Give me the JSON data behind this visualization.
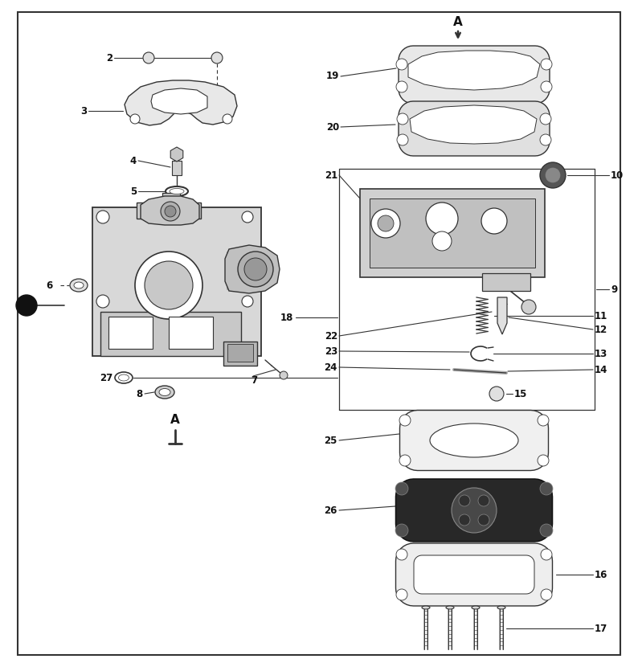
{
  "bg_color": "#ffffff",
  "line_color": "#333333",
  "text_color": "#111111",
  "fig_width": 7.94,
  "fig_height": 8.3,
  "dpi": 100
}
